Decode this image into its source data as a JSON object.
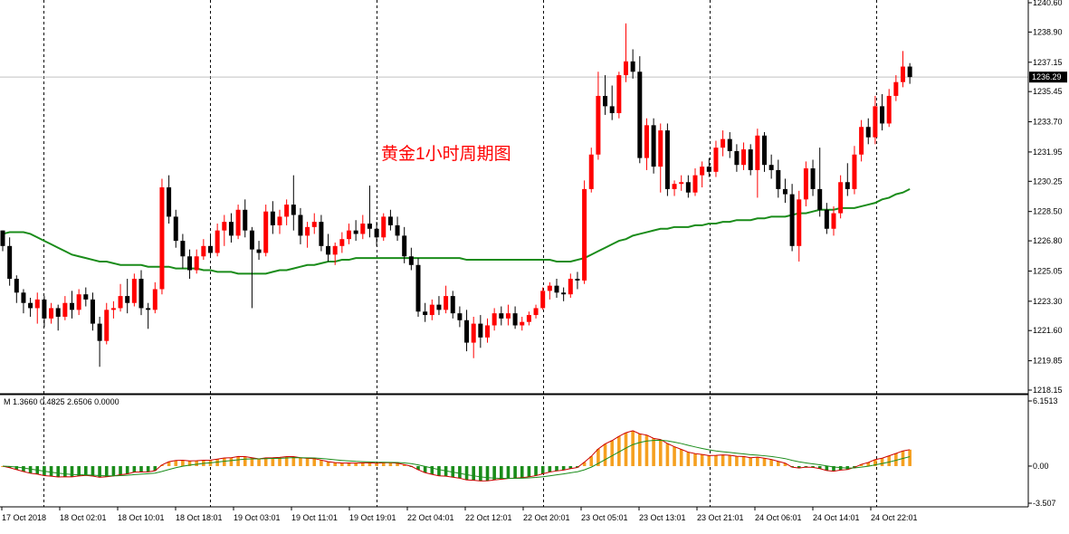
{
  "chart_data": {
    "type": "candlestick",
    "title": "黄金1小时周期图",
    "price_axis": {
      "ylim": [
        1218.15,
        1240.6
      ],
      "ticks": [
        "1240.60",
        "1238.90",
        "1237.15",
        "1235.45",
        "1233.70",
        "1231.95",
        "1230.25",
        "1228.50",
        "1226.80",
        "1225.05",
        "1223.30",
        "1221.60",
        "1219.85",
        "1218.15"
      ],
      "current_price": "1236.29"
    },
    "time_axis": {
      "labels": [
        "17 Oct 2018",
        "18 Oct 02:01",
        "18 Oct 10:01",
        "18 Oct 18:01",
        "19 Oct 03:01",
        "19 Oct 11:01",
        "19 Oct 19:01",
        "22 Oct 04:01",
        "22 Oct 12:01",
        "22 Oct 20:01",
        "23 Oct 05:01",
        "23 Oct 13:01",
        "23 Oct 21:01",
        "24 Oct 06:01",
        "24 Oct 14:01",
        "24 Oct 22:01"
      ]
    },
    "macd": {
      "label": "M 1.3660 0.4825 2.6506 0.0000",
      "ylim": [
        -3.507,
        6.1513
      ],
      "ticks": [
        "6.1513",
        "0.00",
        "-3.507"
      ],
      "colors": {
        "positive": "#f5a020",
        "negative": "#1a8c1a",
        "line_main": "#cc0000",
        "line_signal": "#1a8c1a"
      }
    },
    "colors": {
      "up": "#ff0000",
      "down": "#000000",
      "ma": "#1a8c1a",
      "grid": "#000000"
    },
    "candles": [
      [
        1227.4,
        1227.4,
        1226.2,
        1226.5
      ],
      [
        1226.5,
        1227.0,
        1224.2,
        1224.6
      ],
      [
        1224.6,
        1224.8,
        1223.2,
        1223.8
      ],
      [
        1223.8,
        1224.0,
        1222.6,
        1223.2
      ],
      [
        1223.2,
        1223.5,
        1222.4,
        1222.9
      ],
      [
        1222.9,
        1223.8,
        1222.0,
        1223.4
      ],
      [
        1223.4,
        1223.6,
        1221.8,
        1222.3
      ],
      [
        1222.3,
        1223.2,
        1222.0,
        1222.9
      ],
      [
        1222.9,
        1223.1,
        1221.6,
        1222.4
      ],
      [
        1222.4,
        1223.6,
        1222.2,
        1223.2
      ],
      [
        1223.2,
        1223.9,
        1222.3,
        1222.8
      ],
      [
        1222.8,
        1224.0,
        1222.5,
        1223.7
      ],
      [
        1223.7,
        1224.1,
        1223.0,
        1223.4
      ],
      [
        1223.4,
        1223.8,
        1221.6,
        1222.0
      ],
      [
        1222.0,
        1222.4,
        1219.5,
        1221.0
      ],
      [
        1221.0,
        1223.2,
        1220.8,
        1222.8
      ],
      [
        1222.8,
        1223.3,
        1222.3,
        1222.9
      ],
      [
        1222.9,
        1224.3,
        1222.7,
        1223.6
      ],
      [
        1223.6,
        1224.6,
        1222.6,
        1223.2
      ],
      [
        1223.2,
        1224.9,
        1223.0,
        1224.6
      ],
      [
        1224.6,
        1225.1,
        1222.5,
        1222.9
      ],
      [
        1222.9,
        1223.2,
        1221.7,
        1222.8
      ],
      [
        1222.8,
        1224.4,
        1222.6,
        1224.0
      ],
      [
        1224.0,
        1230.4,
        1223.7,
        1229.9
      ],
      [
        1229.9,
        1230.6,
        1227.8,
        1228.2
      ],
      [
        1228.2,
        1228.6,
        1226.4,
        1226.8
      ],
      [
        1226.8,
        1227.2,
        1225.2,
        1225.9
      ],
      [
        1225.9,
        1226.3,
        1224.6,
        1225.1
      ],
      [
        1225.1,
        1226.3,
        1224.9,
        1225.9
      ],
      [
        1225.9,
        1226.9,
        1225.7,
        1226.5
      ],
      [
        1226.5,
        1227.1,
        1225.8,
        1226.1
      ],
      [
        1226.1,
        1227.8,
        1225.9,
        1227.4
      ],
      [
        1227.4,
        1228.3,
        1226.5,
        1227.9
      ],
      [
        1227.9,
        1228.4,
        1226.7,
        1227.1
      ],
      [
        1227.1,
        1228.9,
        1226.9,
        1228.6
      ],
      [
        1228.6,
        1229.2,
        1227.0,
        1227.4
      ],
      [
        1227.4,
        1227.6,
        1222.9,
        1226.3
      ],
      [
        1226.3,
        1226.8,
        1225.7,
        1226.1
      ],
      [
        1226.1,
        1228.9,
        1225.9,
        1228.5
      ],
      [
        1228.5,
        1229.1,
        1227.2,
        1227.7
      ],
      [
        1227.7,
        1228.6,
        1227.2,
        1228.2
      ],
      [
        1228.2,
        1229.2,
        1227.7,
        1228.9
      ],
      [
        1228.9,
        1230.6,
        1227.4,
        1228.3
      ],
      [
        1228.3,
        1228.7,
        1226.6,
        1227.1
      ],
      [
        1227.1,
        1227.9,
        1226.4,
        1227.6
      ],
      [
        1227.6,
        1228.4,
        1227.2,
        1227.9
      ],
      [
        1227.9,
        1228.3,
        1226.2,
        1226.5
      ],
      [
        1226.5,
        1227.2,
        1225.6,
        1226.0
      ],
      [
        1226.0,
        1226.7,
        1225.4,
        1226.5
      ],
      [
        1226.5,
        1227.3,
        1226.1,
        1226.9
      ],
      [
        1226.9,
        1227.8,
        1226.6,
        1227.4
      ],
      [
        1227.4,
        1228.0,
        1226.8,
        1227.2
      ],
      [
        1227.2,
        1228.3,
        1226.9,
        1227.8
      ],
      [
        1227.8,
        1230.0,
        1227.0,
        1227.5
      ],
      [
        1227.5,
        1227.9,
        1226.5,
        1227.0
      ],
      [
        1227.0,
        1228.4,
        1226.8,
        1228.2
      ],
      [
        1228.2,
        1228.6,
        1227.4,
        1227.7
      ],
      [
        1227.7,
        1228.2,
        1226.8,
        1227.1
      ],
      [
        1227.1,
        1227.6,
        1225.5,
        1225.9
      ],
      [
        1225.9,
        1226.4,
        1225.1,
        1225.4
      ],
      [
        1225.4,
        1225.8,
        1222.4,
        1222.7
      ],
      [
        1222.7,
        1223.2,
        1222.1,
        1222.5
      ],
      [
        1222.5,
        1223.4,
        1222.2,
        1223.1
      ],
      [
        1223.1,
        1223.6,
        1222.5,
        1222.8
      ],
      [
        1222.8,
        1224.2,
        1222.6,
        1223.6
      ],
      [
        1223.6,
        1223.9,
        1222.3,
        1222.6
      ],
      [
        1222.6,
        1223.0,
        1221.8,
        1222.2
      ],
      [
        1222.2,
        1222.8,
        1220.4,
        1220.9
      ],
      [
        1220.9,
        1222.4,
        1220.0,
        1222.0
      ],
      [
        1222.0,
        1222.5,
        1220.6,
        1221.2
      ],
      [
        1221.2,
        1222.3,
        1220.9,
        1221.9
      ],
      [
        1221.9,
        1222.9,
        1221.6,
        1222.6
      ],
      [
        1222.6,
        1223.0,
        1221.9,
        1222.3
      ],
      [
        1222.3,
        1223.1,
        1221.9,
        1222.6
      ],
      [
        1222.6,
        1223.0,
        1221.7,
        1221.9
      ],
      [
        1221.9,
        1222.4,
        1221.6,
        1222.1
      ],
      [
        1222.1,
        1222.7,
        1221.9,
        1222.5
      ],
      [
        1222.5,
        1223.1,
        1222.3,
        1222.9
      ],
      [
        1222.9,
        1224.1,
        1222.8,
        1223.9
      ],
      [
        1223.9,
        1224.4,
        1223.4,
        1224.2
      ],
      [
        1224.2,
        1224.6,
        1223.5,
        1223.8
      ],
      [
        1223.8,
        1224.1,
        1223.3,
        1223.7
      ],
      [
        1223.7,
        1224.9,
        1223.5,
        1224.6
      ],
      [
        1224.6,
        1225.0,
        1224.0,
        1224.5
      ],
      [
        1224.5,
        1230.3,
        1224.3,
        1229.8
      ],
      [
        1229.8,
        1232.2,
        1229.6,
        1231.8
      ],
      [
        1231.8,
        1236.6,
        1231.5,
        1235.2
      ],
      [
        1235.2,
        1236.4,
        1234.1,
        1234.6
      ],
      [
        1234.6,
        1235.8,
        1233.8,
        1234.2
      ],
      [
        1234.2,
        1236.6,
        1233.9,
        1236.4
      ],
      [
        1236.4,
        1239.4,
        1236.0,
        1237.2
      ],
      [
        1237.2,
        1237.9,
        1236.2,
        1236.6
      ],
      [
        1236.6,
        1237.5,
        1231.3,
        1231.6
      ],
      [
        1231.6,
        1233.9,
        1230.9,
        1233.5
      ],
      [
        1233.5,
        1233.9,
        1230.7,
        1231.1
      ],
      [
        1231.1,
        1233.6,
        1229.6,
        1233.2
      ],
      [
        1233.2,
        1233.6,
        1229.4,
        1229.8
      ],
      [
        1229.8,
        1230.3,
        1229.4,
        1230.1
      ],
      [
        1230.1,
        1230.6,
        1229.7,
        1230.2
      ],
      [
        1230.2,
        1230.6,
        1229.3,
        1229.6
      ],
      [
        1229.6,
        1231.0,
        1229.4,
        1230.6
      ],
      [
        1230.6,
        1231.4,
        1229.9,
        1231.1
      ],
      [
        1231.1,
        1231.6,
        1230.5,
        1230.8
      ],
      [
        1230.8,
        1232.6,
        1230.5,
        1232.2
      ],
      [
        1232.2,
        1233.2,
        1231.7,
        1232.7
      ],
      [
        1232.7,
        1233.1,
        1231.6,
        1232.0
      ],
      [
        1232.0,
        1232.4,
        1230.8,
        1231.2
      ],
      [
        1231.2,
        1232.5,
        1230.9,
        1232.1
      ],
      [
        1232.1,
        1232.4,
        1230.6,
        1230.9
      ],
      [
        1230.9,
        1233.3,
        1229.3,
        1232.9
      ],
      [
        1232.9,
        1233.1,
        1230.8,
        1231.2
      ],
      [
        1231.2,
        1231.8,
        1230.4,
        1230.9
      ],
      [
        1230.9,
        1231.5,
        1229.3,
        1229.8
      ],
      [
        1229.8,
        1230.4,
        1229.0,
        1229.5
      ],
      [
        1229.5,
        1230.1,
        1226.2,
        1226.5
      ],
      [
        1226.5,
        1229.7,
        1225.6,
        1229.2
      ],
      [
        1229.2,
        1231.4,
        1228.8,
        1231.0
      ],
      [
        1231.0,
        1231.5,
        1229.4,
        1229.8
      ],
      [
        1229.8,
        1232.2,
        1228.2,
        1228.6
      ],
      [
        1228.6,
        1229.0,
        1227.2,
        1227.5
      ],
      [
        1227.5,
        1228.8,
        1227.1,
        1228.4
      ],
      [
        1228.4,
        1230.6,
        1228.1,
        1230.2
      ],
      [
        1230.2,
        1231.3,
        1229.4,
        1229.8
      ],
      [
        1229.8,
        1232.3,
        1229.5,
        1231.8
      ],
      [
        1231.8,
        1233.8,
        1231.4,
        1233.4
      ],
      [
        1233.4,
        1233.9,
        1232.4,
        1232.8
      ],
      [
        1232.8,
        1235.2,
        1232.4,
        1234.6
      ],
      [
        1234.6,
        1235.3,
        1233.2,
        1233.6
      ],
      [
        1233.6,
        1235.6,
        1233.4,
        1235.2
      ],
      [
        1235.2,
        1236.4,
        1234.9,
        1236.0
      ],
      [
        1236.0,
        1237.8,
        1235.7,
        1236.9
      ],
      [
        1236.9,
        1237.1,
        1235.9,
        1236.29
      ]
    ],
    "ma": [
      1227.2,
      1227.3,
      1227.3,
      1227.3,
      1227.2,
      1227.0,
      1226.8,
      1226.6,
      1226.4,
      1226.2,
      1226.0,
      1225.9,
      1225.8,
      1225.7,
      1225.6,
      1225.6,
      1225.5,
      1225.4,
      1225.4,
      1225.4,
      1225.4,
      1225.3,
      1225.3,
      1225.3,
      1225.3,
      1225.2,
      1225.2,
      1225.2,
      1225.2,
      1225.1,
      1225.1,
      1225.0,
      1225.0,
      1225.0,
      1224.9,
      1224.9,
      1224.9,
      1224.9,
      1224.9,
      1225.0,
      1225.1,
      1225.1,
      1225.2,
      1225.3,
      1225.4,
      1225.4,
      1225.5,
      1225.6,
      1225.6,
      1225.7,
      1225.7,
      1225.8,
      1225.8,
      1225.8,
      1225.8,
      1225.8,
      1225.8,
      1225.8,
      1225.8,
      1225.8,
      1225.8,
      1225.8,
      1225.8,
      1225.8,
      1225.8,
      1225.8,
      1225.8,
      1225.7,
      1225.7,
      1225.7,
      1225.7,
      1225.7,
      1225.7,
      1225.7,
      1225.7,
      1225.7,
      1225.7,
      1225.7,
      1225.7,
      1225.7,
      1225.6,
      1225.6,
      1225.6,
      1225.7,
      1225.8,
      1226.0,
      1226.2,
      1226.4,
      1226.6,
      1226.8,
      1226.9,
      1227.1,
      1227.2,
      1227.3,
      1227.4,
      1227.5,
      1227.5,
      1227.6,
      1227.6,
      1227.6,
      1227.7,
      1227.7,
      1227.8,
      1227.8,
      1227.9,
      1227.9,
      1228.0,
      1228.0,
      1228.0,
      1228.1,
      1228.1,
      1228.2,
      1228.2,
      1228.2,
      1228.3,
      1228.4,
      1228.4,
      1228.5,
      1228.6,
      1228.6,
      1228.6,
      1228.7,
      1228.7,
      1228.7,
      1228.8,
      1228.9,
      1229.0,
      1229.2,
      1229.3,
      1229.5,
      1229.6,
      1229.8
    ]
  }
}
